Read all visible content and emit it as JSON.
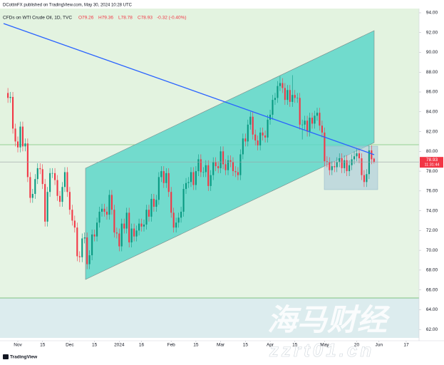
{
  "chart_data": {
    "type": "candlestick",
    "publisher": "DCottinFX published on TradingView.com, May 30, 2024 10:28 UTC",
    "series": [
      {
        "name": "CFDs on WTI Crude Oil, 1D, TVC",
        "up_color": "#089981",
        "down_color": "#f23645",
        "ohlc": [
          [
            85.9,
            86.4,
            84.9,
            85.4
          ],
          [
            85.4,
            86.0,
            84.9,
            85.5
          ],
          [
            85.5,
            86.0,
            81.8,
            82.3
          ],
          [
            82.3,
            82.8,
            80.5,
            81.0
          ],
          [
            81.0,
            81.5,
            79.9,
            80.4
          ],
          [
            80.4,
            83.0,
            79.9,
            82.5
          ],
          [
            82.5,
            83.0,
            80.0,
            80.5
          ],
          [
            80.5,
            81.3,
            80.0,
            80.8
          ],
          [
            80.8,
            81.3,
            76.9,
            77.4
          ],
          [
            77.4,
            77.9,
            74.8,
            75.3
          ],
          [
            75.3,
            76.2,
            74.8,
            75.7
          ],
          [
            75.7,
            77.7,
            75.2,
            77.2
          ],
          [
            77.2,
            78.8,
            76.7,
            78.3
          ],
          [
            78.3,
            78.8,
            77.7,
            78.2
          ],
          [
            78.2,
            78.7,
            76.2,
            76.7
          ],
          [
            76.7,
            77.2,
            72.4,
            72.9
          ],
          [
            72.9,
            76.4,
            72.4,
            75.9
          ],
          [
            75.9,
            78.3,
            75.4,
            77.8
          ],
          [
            77.8,
            78.3,
            77.3,
            77.8
          ],
          [
            77.8,
            78.3,
            76.6,
            77.1
          ],
          [
            77.1,
            77.6,
            75.0,
            75.5
          ],
          [
            75.5,
            76.0,
            74.4,
            74.9
          ],
          [
            74.9,
            76.9,
            74.4,
            76.4
          ],
          [
            76.4,
            78.4,
            75.9,
            77.9
          ],
          [
            77.9,
            78.4,
            75.4,
            75.9
          ],
          [
            75.9,
            76.4,
            73.6,
            74.1
          ],
          [
            74.1,
            74.6,
            72.5,
            73.0
          ],
          [
            73.0,
            73.5,
            71.8,
            72.3
          ],
          [
            72.3,
            72.8,
            68.9,
            69.4
          ],
          [
            69.4,
            69.9,
            68.8,
            69.3
          ],
          [
            69.3,
            71.7,
            68.8,
            71.2
          ],
          [
            71.2,
            71.8,
            70.7,
            71.3
          ],
          [
            71.3,
            71.8,
            68.1,
            68.6
          ],
          [
            68.6,
            70.0,
            68.1,
            69.5
          ],
          [
            69.5,
            72.1,
            69.0,
            71.6
          ],
          [
            71.6,
            72.1,
            70.9,
            71.4
          ],
          [
            71.4,
            73.3,
            70.9,
            72.8
          ],
          [
            72.8,
            74.4,
            72.3,
            73.9
          ],
          [
            73.9,
            74.7,
            73.4,
            74.2
          ],
          [
            74.2,
            74.7,
            73.4,
            73.9
          ],
          [
            73.9,
            74.4,
            73.1,
            73.6
          ],
          [
            73.6,
            76.1,
            73.1,
            75.6
          ],
          [
            75.6,
            76.1,
            73.6,
            74.1
          ],
          [
            74.1,
            74.6,
            71.3,
            71.8
          ],
          [
            71.8,
            72.3,
            71.2,
            71.7
          ],
          [
            71.7,
            72.2,
            69.9,
            70.4
          ],
          [
            70.4,
            73.2,
            69.9,
            72.7
          ],
          [
            72.7,
            73.2,
            71.7,
            72.2
          ],
          [
            72.2,
            74.3,
            71.7,
            73.8
          ],
          [
            73.8,
            74.3,
            70.3,
            70.8
          ],
          [
            70.8,
            72.7,
            70.3,
            72.2
          ],
          [
            72.2,
            72.7,
            70.9,
            71.4
          ],
          [
            71.4,
            72.5,
            70.9,
            72.0
          ],
          [
            72.0,
            73.2,
            71.5,
            72.7
          ],
          [
            72.7,
            73.2,
            71.9,
            72.4
          ],
          [
            72.4,
            73.1,
            71.9,
            72.6
          ],
          [
            72.6,
            74.6,
            72.1,
            74.1
          ],
          [
            74.1,
            74.6,
            72.9,
            73.4
          ],
          [
            73.4,
            75.7,
            72.9,
            75.2
          ],
          [
            75.2,
            75.7,
            73.9,
            74.4
          ],
          [
            74.4,
            75.6,
            73.9,
            75.1
          ],
          [
            75.1,
            77.9,
            74.6,
            77.4
          ],
          [
            77.4,
            78.5,
            76.9,
            78.0
          ],
          [
            78.0,
            78.5,
            76.3,
            76.8
          ],
          [
            76.8,
            78.3,
            76.3,
            77.8
          ],
          [
            77.8,
            78.3,
            75.4,
            75.9
          ],
          [
            75.9,
            76.4,
            73.3,
            73.8
          ],
          [
            73.8,
            74.3,
            71.8,
            72.3
          ],
          [
            72.3,
            73.3,
            71.8,
            72.8
          ],
          [
            72.8,
            73.8,
            72.3,
            73.3
          ],
          [
            73.3,
            74.4,
            72.8,
            73.9
          ],
          [
            73.9,
            76.7,
            73.4,
            76.2
          ],
          [
            76.2,
            77.3,
            75.7,
            76.8
          ],
          [
            76.8,
            77.4,
            76.3,
            76.9
          ],
          [
            76.9,
            78.4,
            76.4,
            77.9
          ],
          [
            77.9,
            78.4,
            76.1,
            76.6
          ],
          [
            76.6,
            78.5,
            76.1,
            78.0
          ],
          [
            78.0,
            79.7,
            77.5,
            79.2
          ],
          [
            79.2,
            79.7,
            77.4,
            77.9
          ],
          [
            77.9,
            78.4,
            77.4,
            77.9
          ],
          [
            77.9,
            79.1,
            77.4,
            78.6
          ],
          [
            78.6,
            79.1,
            76.0,
            76.5
          ],
          [
            76.5,
            78.1,
            76.0,
            77.6
          ],
          [
            77.6,
            79.4,
            77.1,
            78.9
          ],
          [
            78.9,
            79.4,
            78.0,
            78.5
          ],
          [
            78.5,
            79.0,
            77.8,
            78.3
          ],
          [
            78.3,
            80.5,
            77.8,
            80.0
          ],
          [
            80.0,
            80.5,
            78.2,
            78.7
          ],
          [
            78.7,
            79.2,
            77.6,
            78.1
          ],
          [
            78.1,
            79.6,
            77.6,
            79.1
          ],
          [
            79.1,
            79.6,
            78.4,
            78.9
          ],
          [
            78.9,
            79.4,
            77.5,
            78.0
          ],
          [
            78.0,
            78.5,
            77.4,
            77.9
          ],
          [
            77.9,
            78.4,
            77.1,
            77.6
          ],
          [
            77.6,
            80.2,
            77.1,
            79.7
          ],
          [
            79.7,
            81.8,
            79.2,
            81.3
          ],
          [
            81.3,
            81.8,
            80.5,
            81.0
          ],
          [
            81.0,
            83.2,
            80.5,
            82.7
          ],
          [
            82.7,
            84.0,
            82.2,
            83.5
          ],
          [
            83.5,
            84.0,
            81.2,
            81.7
          ],
          [
            81.7,
            82.2,
            80.6,
            81.1
          ],
          [
            81.1,
            81.6,
            80.1,
            80.6
          ],
          [
            80.6,
            82.4,
            80.1,
            81.9
          ],
          [
            81.9,
            82.4,
            81.1,
            81.6
          ],
          [
            81.6,
            82.1,
            80.9,
            81.4
          ],
          [
            81.4,
            83.7,
            80.9,
            83.2
          ],
          [
            83.2,
            84.2,
            82.7,
            83.7
          ],
          [
            83.7,
            85.7,
            83.2,
            85.2
          ],
          [
            85.2,
            85.9,
            84.7,
            85.4
          ],
          [
            85.4,
            87.1,
            84.9,
            86.6
          ],
          [
            86.6,
            87.6,
            86.1,
            86.9
          ],
          [
            86.9,
            87.4,
            85.9,
            86.4
          ],
          [
            86.4,
            86.9,
            84.7,
            85.2
          ],
          [
            85.2,
            86.7,
            84.7,
            86.2
          ],
          [
            86.2,
            86.7,
            84.5,
            85.0
          ],
          [
            85.0,
            87.7,
            84.5,
            85.7
          ],
          [
            85.7,
            86.2,
            84.9,
            85.4
          ],
          [
            85.4,
            85.9,
            84.9,
            85.4
          ],
          [
            85.4,
            85.9,
            82.2,
            82.7
          ],
          [
            82.7,
            83.2,
            81.2,
            82.7
          ],
          [
            82.7,
            83.6,
            82.2,
            83.1
          ],
          [
            83.1,
            83.6,
            81.5,
            82.0
          ],
          [
            82.0,
            83.9,
            81.5,
            83.4
          ],
          [
            83.4,
            83.9,
            82.3,
            82.8
          ],
          [
            82.8,
            84.1,
            82.3,
            83.6
          ],
          [
            83.6,
            84.4,
            83.1,
            83.9
          ],
          [
            83.9,
            84.4,
            82.1,
            82.6
          ],
          [
            82.6,
            83.1,
            81.4,
            81.9
          ],
          [
            81.9,
            82.4,
            78.5,
            79.0
          ],
          [
            79.0,
            79.5,
            78.4,
            78.9
          ],
          [
            78.9,
            79.4,
            77.6,
            78.1
          ],
          [
            78.1,
            79.0,
            77.6,
            78.5
          ],
          [
            78.5,
            79.0,
            77.9,
            78.4
          ],
          [
            78.4,
            79.4,
            77.9,
            78.9
          ],
          [
            78.9,
            79.8,
            78.4,
            79.3
          ],
          [
            79.3,
            79.8,
            77.8,
            78.3
          ],
          [
            78.3,
            79.6,
            77.8,
            79.1
          ],
          [
            79.1,
            79.6,
            77.5,
            78.0
          ],
          [
            78.0,
            79.1,
            77.5,
            78.6
          ],
          [
            78.6,
            79.7,
            78.1,
            79.2
          ],
          [
            79.2,
            80.0,
            78.7,
            79.5
          ],
          [
            79.5,
            80.3,
            79.0,
            79.8
          ],
          [
            79.8,
            80.3,
            78.8,
            79.3
          ],
          [
            79.3,
            79.8,
            77.1,
            77.6
          ],
          [
            77.6,
            78.1,
            76.4,
            76.9
          ],
          [
            76.9,
            78.2,
            76.4,
            77.7
          ],
          [
            77.7,
            80.6,
            77.2,
            80.1
          ],
          [
            80.1,
            80.6,
            78.7,
            79.2
          ],
          [
            79.26,
            79.36,
            78.78,
            78.93
          ]
        ]
      }
    ],
    "ohlc_header": {
      "open": "O79.26",
      "high": "H79.36",
      "low": "L78.78",
      "close": "C78.93",
      "change": "-0.32 (-0.40%)"
    },
    "last_price": {
      "value": 78.93,
      "label": "78.93"
    },
    "countdown": "11:31:44",
    "xlim": [
      -3.2,
      166.2
    ],
    "xticks": [
      {
        "value": 4,
        "label": "Nov"
      },
      {
        "value": 14,
        "label": "15"
      },
      {
        "value": 25,
        "label": "Dec"
      },
      {
        "value": 35,
        "label": "15"
      },
      {
        "value": 45,
        "label": "2024"
      },
      {
        "value": 54,
        "label": "16"
      },
      {
        "value": 66,
        "label": "Feb"
      },
      {
        "value": 76,
        "label": "15"
      },
      {
        "value": 86,
        "label": "Mar"
      },
      {
        "value": 96,
        "label": "15"
      },
      {
        "value": 106,
        "label": "Apr"
      },
      {
        "value": 116,
        "label": "15"
      },
      {
        "value": 128,
        "label": "May"
      },
      {
        "value": 141,
        "label": "20"
      },
      {
        "value": 150,
        "label": "Jun"
      },
      {
        "value": 161,
        "label": "17"
      }
    ],
    "ylim": [
      60.86,
      94.43
    ],
    "yticks": [
      {
        "value": 62,
        "label": "62.00"
      },
      {
        "value": 64,
        "label": "64.00"
      },
      {
        "value": 66,
        "label": "66.00"
      },
      {
        "value": 68,
        "label": "68.00"
      },
      {
        "value": 70,
        "label": "70.00"
      },
      {
        "value": 72,
        "label": "72.00"
      },
      {
        "value": 74,
        "label": "74.00"
      },
      {
        "value": 76,
        "label": "76.00"
      },
      {
        "value": 78,
        "label": "78.00"
      },
      {
        "value": 80,
        "label": "80.00"
      },
      {
        "value": 82,
        "label": "82.00"
      },
      {
        "value": 84,
        "label": "84.00"
      },
      {
        "value": 86,
        "label": "86.00"
      },
      {
        "value": 88,
        "label": "88.00"
      },
      {
        "value": 90,
        "label": "90.00"
      },
      {
        "value": 92,
        "label": "92.00"
      },
      {
        "value": 94,
        "label": "94.00"
      }
    ],
    "grid": false,
    "branding": "TradingView",
    "watermark": [
      "海马财经",
      "zzrt01.cn"
    ]
  }
}
